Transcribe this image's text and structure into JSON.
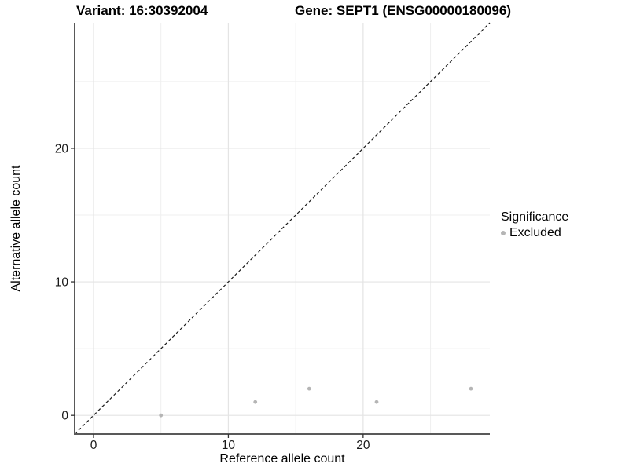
{
  "chart_data": {
    "type": "scatter",
    "titles": {
      "left": "Variant: 16:30392004",
      "right": "Gene: SEPT1 (ENSG00000180096)"
    },
    "xlabel": "Reference allele count",
    "ylabel": "Alternative allele count",
    "x_ticks": [
      0,
      10,
      20
    ],
    "y_ticks": [
      0,
      10,
      20
    ],
    "major_grid": [
      0,
      10,
      20
    ],
    "minor_grid": [
      5,
      15,
      25
    ],
    "xlim": [
      -1.4,
      29.4
    ],
    "ylim": [
      -1.4,
      29.4
    ],
    "grid": true,
    "legend_position": "right",
    "legend": {
      "title": "Significance",
      "items": [
        {
          "label": "Excluded",
          "color": "#b5b5b5"
        }
      ]
    },
    "series": [
      {
        "name": "Excluded",
        "color": "#b5b5b5",
        "points": [
          {
            "x": 5,
            "y": 0
          },
          {
            "x": 12,
            "y": 1
          },
          {
            "x": 16,
            "y": 2
          },
          {
            "x": 21,
            "y": 1
          },
          {
            "x": 28,
            "y": 2
          }
        ]
      }
    ],
    "reference_line": {
      "slope": 1,
      "intercept": 0,
      "style": "dashed",
      "color": "#1a1a1a"
    },
    "colors": {
      "background": "#ffffff",
      "grid_major": "#e4e4e4",
      "grid_minor": "#efefef",
      "axis_line": "#595959",
      "tick_mark": "#333333",
      "tick_text": "#1a1a1a"
    }
  }
}
